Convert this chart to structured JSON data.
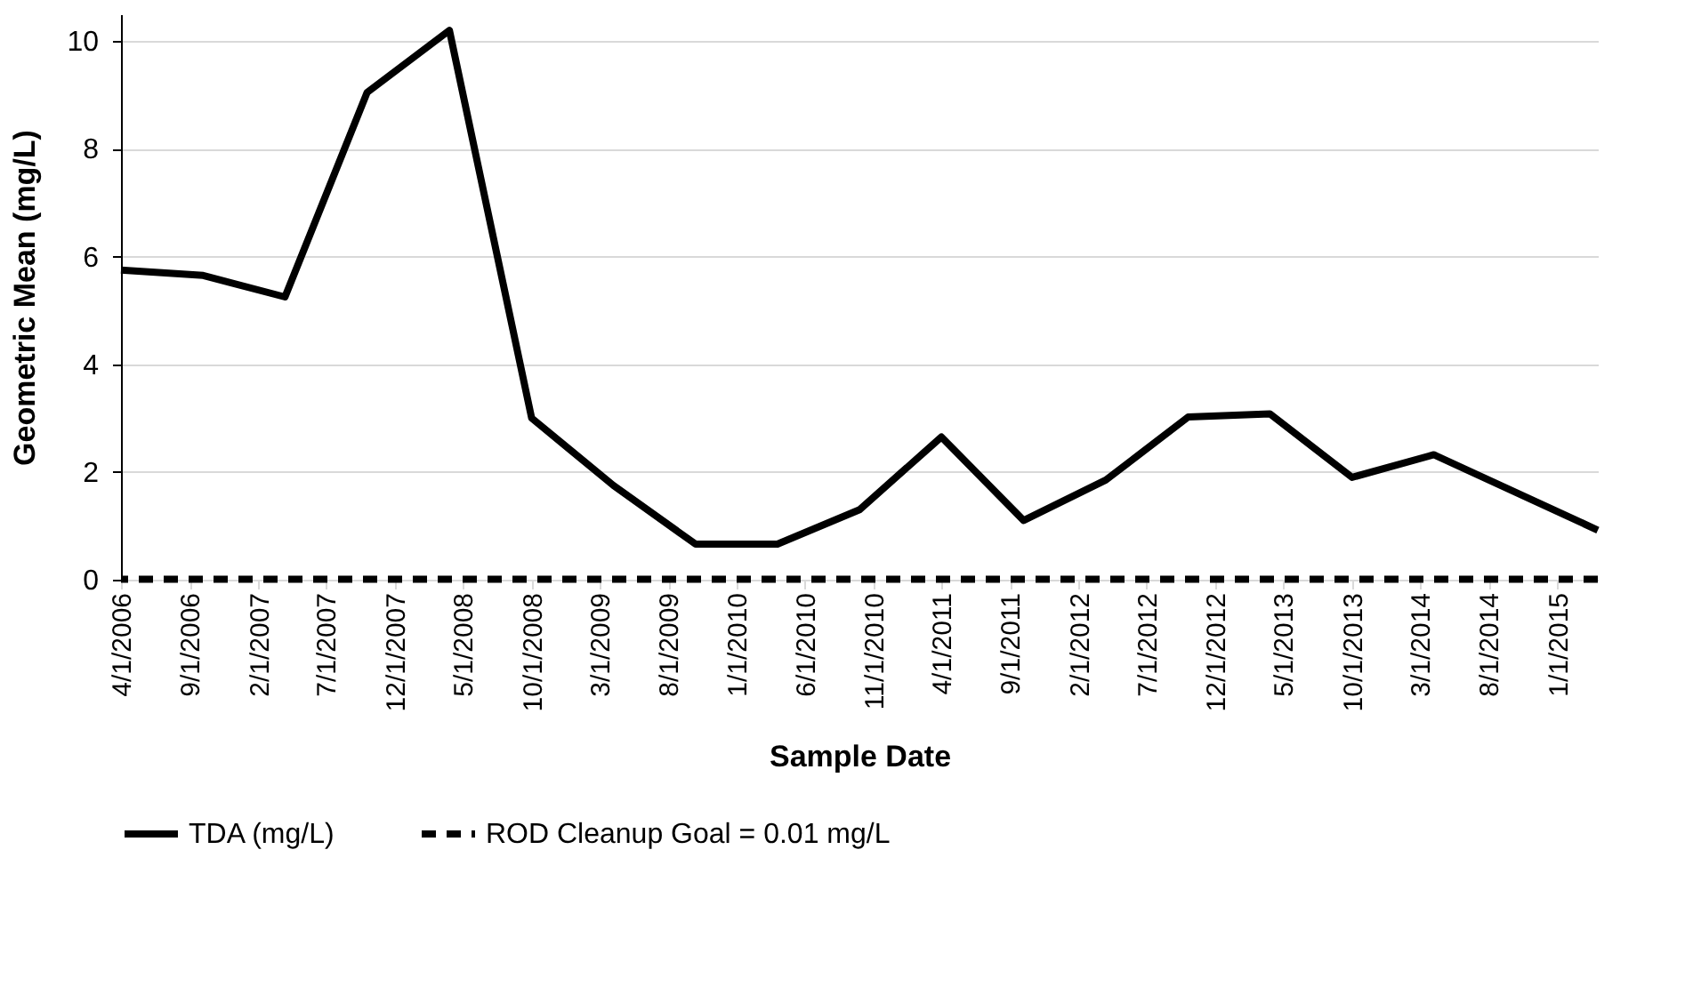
{
  "chart_data": {
    "type": "line",
    "xlabel": "Sample Date",
    "ylabel": "Geometric Mean (mg/L)",
    "x": [
      "2006-04",
      "2006-10",
      "2007-04",
      "2007-10",
      "2008-04",
      "2008-10",
      "2009-04",
      "2009-10",
      "2010-04",
      "2010-10",
      "2011-04",
      "2011-10",
      "2012-04",
      "2012-10",
      "2013-04",
      "2013-10",
      "2014-04",
      "2015-04"
    ],
    "series": [
      {
        "name": "TDA (mg/L)",
        "color": "#000000",
        "values": [
          5.75,
          5.65,
          5.25,
          9.05,
          10.2,
          3.0,
          1.75,
          0.66,
          0.66,
          1.3,
          2.65,
          1.1,
          1.85,
          3.02,
          3.08,
          1.9,
          2.32,
          0.92
        ]
      }
    ],
    "ref_lines": [
      {
        "axis": "y",
        "value": 0.01,
        "label": "ROD Cleanup Goal =  0.01 mg/L",
        "color": "#000000",
        "line_style": "dashed"
      }
    ],
    "xlim": [
      "2006-04",
      "2015-04"
    ],
    "xticks": [
      {
        "value": "2006-04-01",
        "label": "4/1/2006"
      },
      {
        "value": "2006-09-01",
        "label": "9/1/2006"
      },
      {
        "value": "2007-02-01",
        "label": "2/1/2007"
      },
      {
        "value": "2007-07-01",
        "label": "7/1/2007"
      },
      {
        "value": "2007-12-01",
        "label": "12/1/2007"
      },
      {
        "value": "2008-05-01",
        "label": "5/1/2008"
      },
      {
        "value": "2008-10-01",
        "label": "10/1/2008"
      },
      {
        "value": "2009-03-01",
        "label": "3/1/2009"
      },
      {
        "value": "2009-08-01",
        "label": "8/1/2009"
      },
      {
        "value": "2010-01-01",
        "label": "1/1/2010"
      },
      {
        "value": "2010-06-01",
        "label": "6/1/2010"
      },
      {
        "value": "2010-11-01",
        "label": "11/1/2010"
      },
      {
        "value": "2011-04-01",
        "label": "4/1/2011"
      },
      {
        "value": "2011-09-01",
        "label": "9/1/2011"
      },
      {
        "value": "2012-02-01",
        "label": "2/1/2012"
      },
      {
        "value": "2012-07-01",
        "label": "7/1/2012"
      },
      {
        "value": "2012-12-01",
        "label": "12/1/2012"
      },
      {
        "value": "2013-05-01",
        "label": "5/1/2013"
      },
      {
        "value": "2013-10-01",
        "label": "10/1/2013"
      },
      {
        "value": "2014-03-01",
        "label": "3/1/2014"
      },
      {
        "value": "2014-08-01",
        "label": "8/1/2014"
      },
      {
        "value": "2015-01-01",
        "label": "1/1/2015"
      }
    ],
    "ylim": [
      0,
      10.5
    ],
    "yticks": [
      0,
      2,
      4,
      6,
      8,
      10
    ],
    "grid": "y",
    "legend": "bottom",
    "line_style": "solid",
    "marker": "none"
  }
}
